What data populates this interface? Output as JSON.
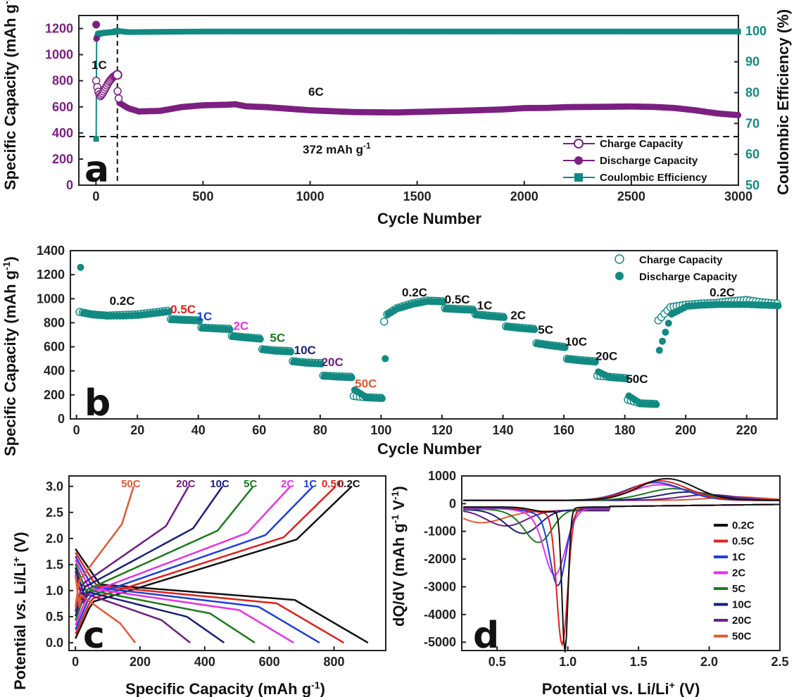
{
  "chart_data": [
    {
      "panel": "a",
      "type": "scatter",
      "xlabel": "Cycle Number",
      "ylabel": "Specific Capacity (mAh g-1)",
      "ylabel_right": "Coulombic Efficiency (%)",
      "xlim": [
        -80,
        3000
      ],
      "ylim": [
        0,
        1300
      ],
      "ylim_right": [
        50,
        105
      ],
      "xticks": [
        "0",
        "500",
        "1000",
        "1500",
        "2000",
        "2500",
        "3000"
      ],
      "yticks": [
        "0",
        "200",
        "400",
        "600",
        "800",
        "1000",
        "1200"
      ],
      "yticks_right": [
        "50",
        "60",
        "70",
        "80",
        "90",
        "100"
      ],
      "reference_line": {
        "y": 372,
        "label": "372 mAh g-1"
      },
      "vertical_line": {
        "x": 100
      },
      "annotations": [
        "1C",
        "6C"
      ],
      "legend": {
        "position": "bottom-right",
        "entries": [
          "Charge Capacity",
          "Discharge Capacity",
          "Coulombic Efficiency"
        ]
      },
      "colors": {
        "capacity": "#7b1f80",
        "efficiency": "#118a82"
      },
      "series": [
        {
          "name": "Charge Capacity",
          "x": [
            1,
            5,
            10,
            20,
            30,
            40,
            50,
            60,
            70,
            80,
            90,
            100,
            101,
            110,
            150,
            200,
            300,
            400,
            500,
            600,
            650,
            700,
            800,
            900,
            1000,
            1100,
            1200,
            1300,
            1400,
            1500,
            1600,
            1700,
            1800,
            1900,
            2000,
            2100,
            2200,
            2300,
            2400,
            2500,
            2600,
            2700,
            2800,
            2900,
            3000
          ],
          "values": [
            800,
            760,
            720,
            680,
            700,
            730,
            760,
            790,
            810,
            830,
            840,
            845,
            720,
            620,
            580,
            555,
            560,
            590,
            605,
            610,
            615,
            600,
            595,
            585,
            575,
            570,
            565,
            565,
            565,
            570,
            575,
            580,
            585,
            590,
            600,
            600,
            605,
            605,
            605,
            605,
            600,
            590,
            570,
            545,
            530
          ]
        },
        {
          "name": "Discharge Capacity",
          "x": [
            1,
            5,
            10,
            20,
            30,
            40,
            50,
            60,
            70,
            80,
            90,
            100,
            101,
            110,
            150,
            200,
            300,
            400,
            500,
            600,
            650,
            700,
            800,
            900,
            1000,
            1100,
            1200,
            1300,
            1400,
            1500,
            1600,
            1700,
            1800,
            1900,
            2000,
            2100,
            2200,
            2300,
            2400,
            2500,
            2600,
            2700,
            2800,
            2900,
            3000
          ],
          "values": [
            1230,
            760,
            720,
            680,
            700,
            730,
            760,
            790,
            810,
            830,
            840,
            845,
            720,
            620,
            580,
            555,
            560,
            590,
            605,
            610,
            615,
            600,
            595,
            585,
            575,
            570,
            565,
            565,
            565,
            570,
            575,
            580,
            585,
            590,
            600,
            600,
            605,
            605,
            605,
            605,
            600,
            590,
            570,
            545,
            530
          ]
        },
        {
          "name": "Coulombic Efficiency",
          "x": [
            1,
            3,
            5,
            10,
            20,
            40,
            60,
            80,
            100,
            150,
            300,
            500,
            1000,
            1500,
            2000,
            2500,
            3000
          ],
          "values": [
            65,
            97,
            98,
            99,
            99.2,
            99.4,
            99.5,
            99.6,
            100,
            99.6,
            99.7,
            99.8,
            99.8,
            99.8,
            99.8,
            99.8,
            99.8
          ]
        }
      ]
    },
    {
      "panel": "b",
      "type": "scatter",
      "xlabel": "Cycle Number",
      "ylabel": "Specific Capacity (mAh g-1)",
      "xlim": [
        -2,
        230
      ],
      "ylim": [
        0,
        1400
      ],
      "xticks": [
        "0",
        "20",
        "40",
        "60",
        "80",
        "100",
        "120",
        "140",
        "160",
        "180",
        "200",
        "220"
      ],
      "yticks": [
        "0",
        "200",
        "400",
        "600",
        "800",
        "1000",
        "1200",
        "1400"
      ],
      "legend": {
        "position": "top-right",
        "entries": [
          "Charge Capacity",
          "Discharge Capacity"
        ]
      },
      "color": "#118a82",
      "rate_labels": [
        {
          "text": "0.2C",
          "x": 15,
          "y": 950,
          "color": "#111111"
        },
        {
          "text": "0.5C",
          "x": 35,
          "y": 880,
          "color": "#e0201b"
        },
        {
          "text": "1C",
          "x": 42,
          "y": 820,
          "color": "#1d3fd8"
        },
        {
          "text": "2C",
          "x": 54,
          "y": 740,
          "color": "#e631e6"
        },
        {
          "text": "5C",
          "x": 66,
          "y": 640,
          "color": "#1d7a1d"
        },
        {
          "text": "10C",
          "x": 75,
          "y": 540,
          "color": "#1a1f7a"
        },
        {
          "text": "20C",
          "x": 84,
          "y": 440,
          "color": "#6e1e82"
        },
        {
          "text": "50C",
          "x": 95,
          "y": 260,
          "color": "#e05a35"
        },
        {
          "text": "0.2C",
          "x": 111,
          "y": 1020,
          "color": "#111111"
        },
        {
          "text": "0.5C",
          "x": 125,
          "y": 960,
          "color": "#111111"
        },
        {
          "text": "1C",
          "x": 134,
          "y": 910,
          "color": "#111111"
        },
        {
          "text": "2C",
          "x": 145,
          "y": 830,
          "color": "#111111"
        },
        {
          "text": "5C",
          "x": 154,
          "y": 710,
          "color": "#111111"
        },
        {
          "text": "10C",
          "x": 164,
          "y": 610,
          "color": "#111111"
        },
        {
          "text": "20C",
          "x": 174,
          "y": 490,
          "color": "#111111"
        },
        {
          "text": "50C",
          "x": 184,
          "y": 300,
          "color": "#111111"
        },
        {
          "text": "0.2C",
          "x": 212,
          "y": 1020,
          "color": "#111111"
        }
      ],
      "series": [
        {
          "name": "Charge Capacity",
          "x": [
            1,
            5,
            10,
            15,
            20,
            25,
            30,
            31,
            35,
            40,
            41,
            45,
            50,
            51,
            55,
            60,
            61,
            65,
            70,
            71,
            75,
            80,
            81,
            85,
            90,
            91,
            95,
            100,
            101,
            102,
            105,
            110,
            115,
            120,
            121,
            125,
            130,
            131,
            135,
            140,
            141,
            145,
            150,
            151,
            155,
            160,
            161,
            165,
            170,
            171,
            175,
            180,
            181,
            185,
            190,
            191,
            195,
            200,
            205,
            210,
            215,
            220,
            225,
            230
          ],
          "values": [
            890,
            870,
            860,
            865,
            870,
            885,
            900,
            830,
            825,
            820,
            760,
            755,
            750,
            690,
            680,
            670,
            580,
            570,
            565,
            480,
            470,
            465,
            360,
            355,
            350,
            190,
            180,
            175,
            810,
            870,
            920,
            960,
            985,
            980,
            920,
            915,
            910,
            870,
            860,
            850,
            770,
            760,
            750,
            630,
            615,
            600,
            500,
            490,
            480,
            360,
            350,
            340,
            160,
            130,
            125,
            820,
            930,
            950,
            960,
            965,
            980,
            990,
            970,
            960
          ]
        },
        {
          "name": "Discharge Capacity",
          "x": [
            1,
            2,
            5,
            10,
            15,
            20,
            25,
            30,
            31,
            35,
            40,
            41,
            45,
            50,
            51,
            55,
            60,
            61,
            65,
            70,
            71,
            75,
            80,
            81,
            85,
            90,
            91,
            95,
            100,
            101,
            102,
            105,
            110,
            115,
            120,
            121,
            125,
            130,
            131,
            135,
            140,
            141,
            145,
            150,
            151,
            155,
            160,
            161,
            165,
            170,
            171,
            175,
            180,
            181,
            185,
            190,
            191,
            195,
            200,
            205,
            210,
            215,
            220,
            225,
            230
          ],
          "values": [
            1270,
            890,
            880,
            865,
            865,
            870,
            885,
            900,
            835,
            830,
            825,
            765,
            758,
            752,
            695,
            684,
            672,
            585,
            572,
            566,
            485,
            472,
            466,
            365,
            357,
            352,
            250,
            185,
            178,
            510,
            880,
            925,
            962,
            987,
            982,
            925,
            918,
            912,
            875,
            862,
            852,
            775,
            762,
            752,
            635,
            618,
            602,
            505,
            492,
            482,
            400,
            352,
            342,
            200,
            135,
            128,
            580,
            880,
            945,
            955,
            960,
            960,
            960,
            955,
            950
          ]
        }
      ]
    },
    {
      "panel": "c",
      "type": "line",
      "xlabel": "Specific Capacity (mAh g-1)",
      "ylabel": "Potential vs. Li/Li+ (V)",
      "xlim": [
        -20,
        960
      ],
      "ylim": [
        -0.15,
        3.2
      ],
      "xticks": [
        "0",
        "200",
        "400",
        "600",
        "800"
      ],
      "yticks": [
        "0.0",
        "0.5",
        "1.0",
        "1.5",
        "2.0",
        "2.5",
        "3.0"
      ],
      "series": [
        {
          "name": "0.2C",
          "color": "#111111",
          "capacity": 905,
          "charge_capacity": 855
        },
        {
          "name": "0.5C",
          "color": "#e0201b",
          "capacity": 830,
          "charge_capacity": 805
        },
        {
          "name": "1C",
          "color": "#1d3fd8",
          "capacity": 755,
          "charge_capacity": 735
        },
        {
          "name": "2C",
          "color": "#e631e6",
          "capacity": 675,
          "charge_capacity": 665
        },
        {
          "name": "5C",
          "color": "#1d7a1d",
          "capacity": 555,
          "charge_capacity": 550
        },
        {
          "name": "10C",
          "color": "#1a1f7a",
          "capacity": 460,
          "charge_capacity": 455
        },
        {
          "name": "20C",
          "color": "#6e1e82",
          "capacity": 355,
          "charge_capacity": 350
        },
        {
          "name": "50C",
          "color": "#e05a35",
          "capacity": 185,
          "charge_capacity": 180
        }
      ]
    },
    {
      "panel": "d",
      "type": "line",
      "xlabel": "Potential vs. Li/Li+ (V)",
      "ylabel": "dQ/dV (mAh g-1 V-1)",
      "xlim": [
        0.25,
        2.5
      ],
      "ylim": [
        -5300,
        1000
      ],
      "xticks": [
        "0.5",
        "1.0",
        "1.5",
        "2.0",
        "2.5"
      ],
      "yticks": [
        "1000",
        "0",
        "-1000",
        "-2000",
        "-3000",
        "-4000",
        "-5000"
      ],
      "legend": {
        "position": "bottom-right",
        "entries": [
          "0.2C",
          "0.5C",
          "1C",
          "2C",
          "5C",
          "10C",
          "20C",
          "50C"
        ]
      },
      "series": [
        {
          "name": "0.2C",
          "color": "#111111",
          "peak_x": 0.98,
          "peak_y": -5150,
          "ox_x": 1.7,
          "ox_y": 780
        },
        {
          "name": "0.5C",
          "color": "#e0201b",
          "peak_x": 0.96,
          "peak_y": -4850,
          "ox_x": 1.65,
          "ox_y": 700
        },
        {
          "name": "1C",
          "color": "#1d3fd8",
          "peak_x": 0.93,
          "peak_y": -2700,
          "ox_x": 1.62,
          "ox_y": 640
        },
        {
          "name": "2C",
          "color": "#e631e6",
          "peak_x": 0.91,
          "peak_y": -2300,
          "ox_x": 1.65,
          "ox_y": 560
        },
        {
          "name": "5C",
          "color": "#1d7a1d",
          "peak_x": 0.8,
          "peak_y": -1100,
          "ox_x": 1.75,
          "ox_y": 420
        },
        {
          "name": "10C",
          "color": "#1a1f7a",
          "peak_x": 0.7,
          "peak_y": -750,
          "ox_x": 1.85,
          "ox_y": 300
        },
        {
          "name": "20C",
          "color": "#6e1e82",
          "peak_x": 0.6,
          "peak_y": -450,
          "ox_x": 2.0,
          "ox_y": 200
        },
        {
          "name": "50C",
          "color": "#e05a35",
          "peak_x": 0.45,
          "peak_y": -300,
          "ox_x": 2.2,
          "ox_y": 120
        }
      ]
    }
  ]
}
